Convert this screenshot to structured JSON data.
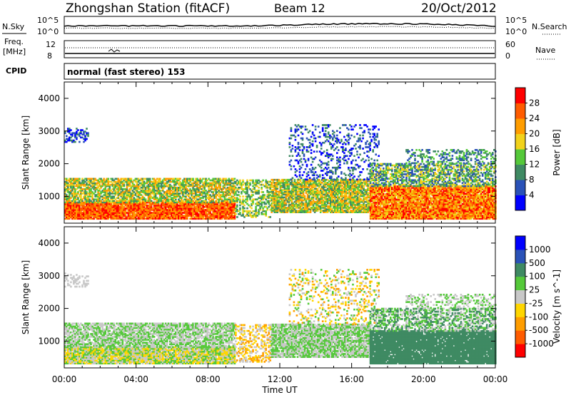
{
  "header": {
    "station": "Zhongshan Station (fitACF)",
    "beam": "Beam 12",
    "date": "20/Oct/2012"
  },
  "panels": {
    "noise": {
      "left_label": "N.Sky",
      "right_label": "N.Search",
      "left_ticks": [
        "10^5",
        "10^0"
      ],
      "right_ticks": [
        "10^5",
        "10^0"
      ]
    },
    "freq": {
      "left_label_1": "Freq.",
      "left_label_2": "[MHz]",
      "left_ticks": [
        "12",
        "8"
      ],
      "right_label": "Nave",
      "right_ticks": [
        "60",
        "0"
      ]
    },
    "cpid": {
      "label": "CPID",
      "text": "normal (fast stereo) 153"
    }
  },
  "colors": {
    "power": [
      "#0000ff",
      "#2a52b8",
      "#3f8a63",
      "#55c93a",
      "#f2d21b",
      "#ff9d00",
      "#ff5c00",
      "#ff0000"
    ],
    "velocity": [
      "#ff0000",
      "#ff5c00",
      "#ff9d00",
      "#ffd600",
      "#c8c8c8",
      "#55c93a",
      "#3f8a63",
      "#2a52b8",
      "#0000ff"
    ]
  },
  "chart_data": [
    {
      "type": "heatmap",
      "name": "power",
      "xlabel": "",
      "ylabel": "Slant Range [km]",
      "ylim": [
        180,
        4500
      ],
      "yticks": [
        1000,
        2000,
        3000,
        4000
      ],
      "xlim": [
        0,
        24
      ],
      "colorbar": {
        "label": "Power [dB]",
        "levels": [
          0,
          4,
          8,
          12,
          16,
          20,
          24,
          28,
          32
        ],
        "tick_labels": [
          "4",
          "8",
          "12",
          "16",
          "20",
          "24",
          "28"
        ]
      }
    },
    {
      "type": "heatmap",
      "name": "velocity",
      "xlabel": "Time UT",
      "ylabel": "Slant Range [km]",
      "ylim": [
        180,
        4500
      ],
      "yticks": [
        1000,
        2000,
        3000,
        4000
      ],
      "xlim": [
        0,
        24
      ],
      "xtick_labels": [
        "00:00",
        "04:00",
        "08:00",
        "12:00",
        "16:00",
        "20:00",
        "00:00"
      ],
      "colorbar": {
        "label": "Velocity [m s^-1]",
        "tick_labels": [
          "1000",
          "500",
          "100",
          "25",
          "-25",
          "-100",
          "-500",
          "-1000"
        ]
      }
    }
  ]
}
